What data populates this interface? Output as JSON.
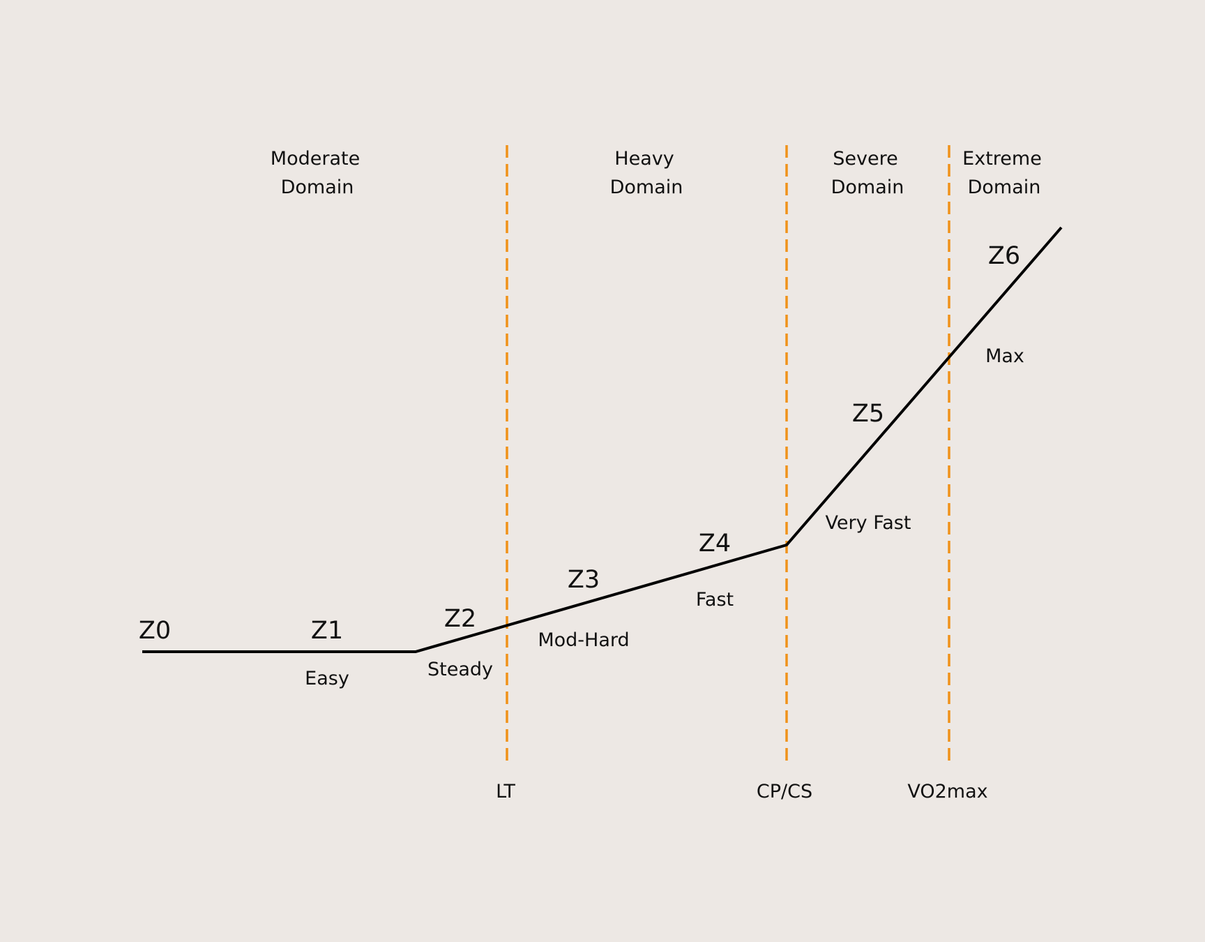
{
  "domains": [
    {
      "line1": "Moderate",
      "line2": "Domain"
    },
    {
      "line1": "Heavy",
      "line2": "Domain"
    },
    {
      "line1": "Severe",
      "line2": "Domain"
    },
    {
      "line1": "Extreme",
      "line2": "Domain"
    }
  ],
  "thresholds": [
    {
      "label": "LT"
    },
    {
      "label": "CP/CS"
    },
    {
      "label": "VO2max"
    }
  ],
  "zones": [
    {
      "label": "Z0",
      "intensity": ""
    },
    {
      "label": "Z1",
      "intensity": "Easy"
    },
    {
      "label": "Z2",
      "intensity": "Steady"
    },
    {
      "label": "Z3",
      "intensity": "Mod-Hard"
    },
    {
      "label": "Z4",
      "intensity": "Fast"
    },
    {
      "label": "Z5",
      "intensity": "Very Fast"
    },
    {
      "label": "Z6",
      "intensity": "Max"
    }
  ],
  "colors": {
    "background": "#ede8e4",
    "threshold_line": "#f0921a",
    "curve": "#000000",
    "text": "#111111"
  }
}
